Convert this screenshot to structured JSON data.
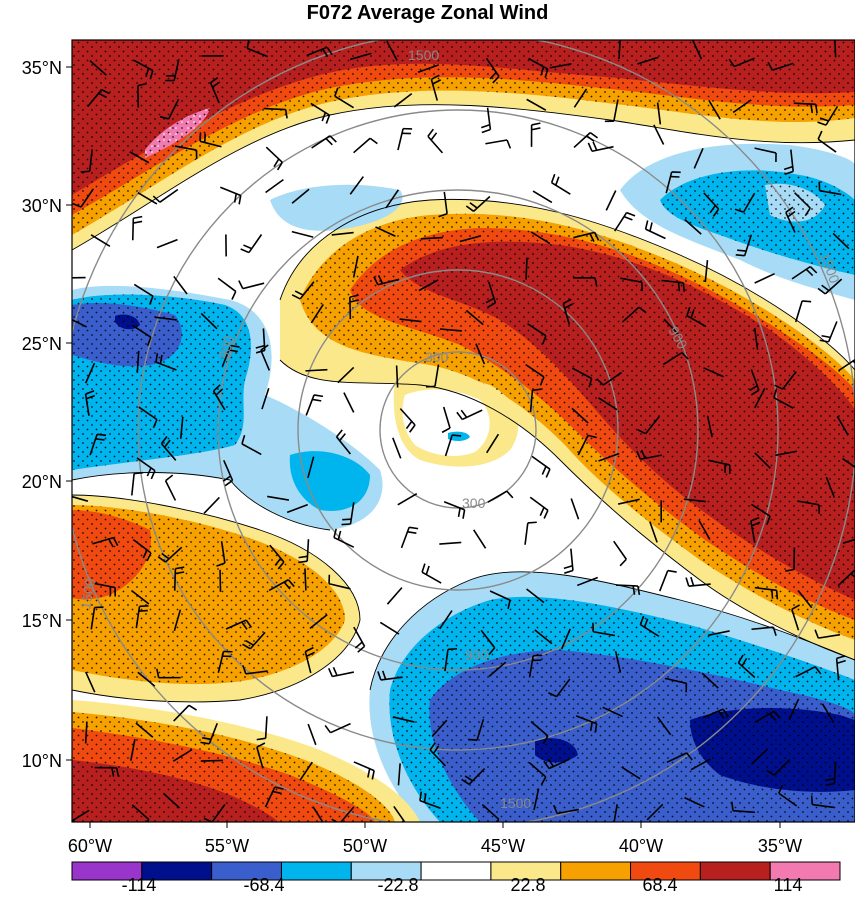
{
  "title": "F072 Average Zonal Wind",
  "map": {
    "lat_labels": [
      "35°N",
      "30°N",
      "25°N",
      "20°N",
      "15°N",
      "10°N"
    ],
    "lon_labels": [
      "60°W",
      "55°W",
      "50°W",
      "45°W",
      "40°W",
      "35°W"
    ],
    "ring_labels": [
      "300",
      "300",
      "900",
      "900",
      "900",
      "1500",
      "1500",
      "1500",
      "1500"
    ]
  },
  "colorbar": {
    "labels": [
      "-114",
      "-68.4",
      "-22.8",
      "22.8",
      "68.4",
      "114"
    ],
    "colors": [
      "#9a35cc",
      "#000f8c",
      "#3a5fcd",
      "#00b4ee",
      "#a8dcf6",
      "#ffffff",
      "#fbe88a",
      "#f6a100",
      "#f04a10",
      "#b82020",
      "#f27ab0"
    ]
  },
  "colors": {
    "wind_barb": "#000000",
    "range_ring": "#8a8a8a"
  }
}
